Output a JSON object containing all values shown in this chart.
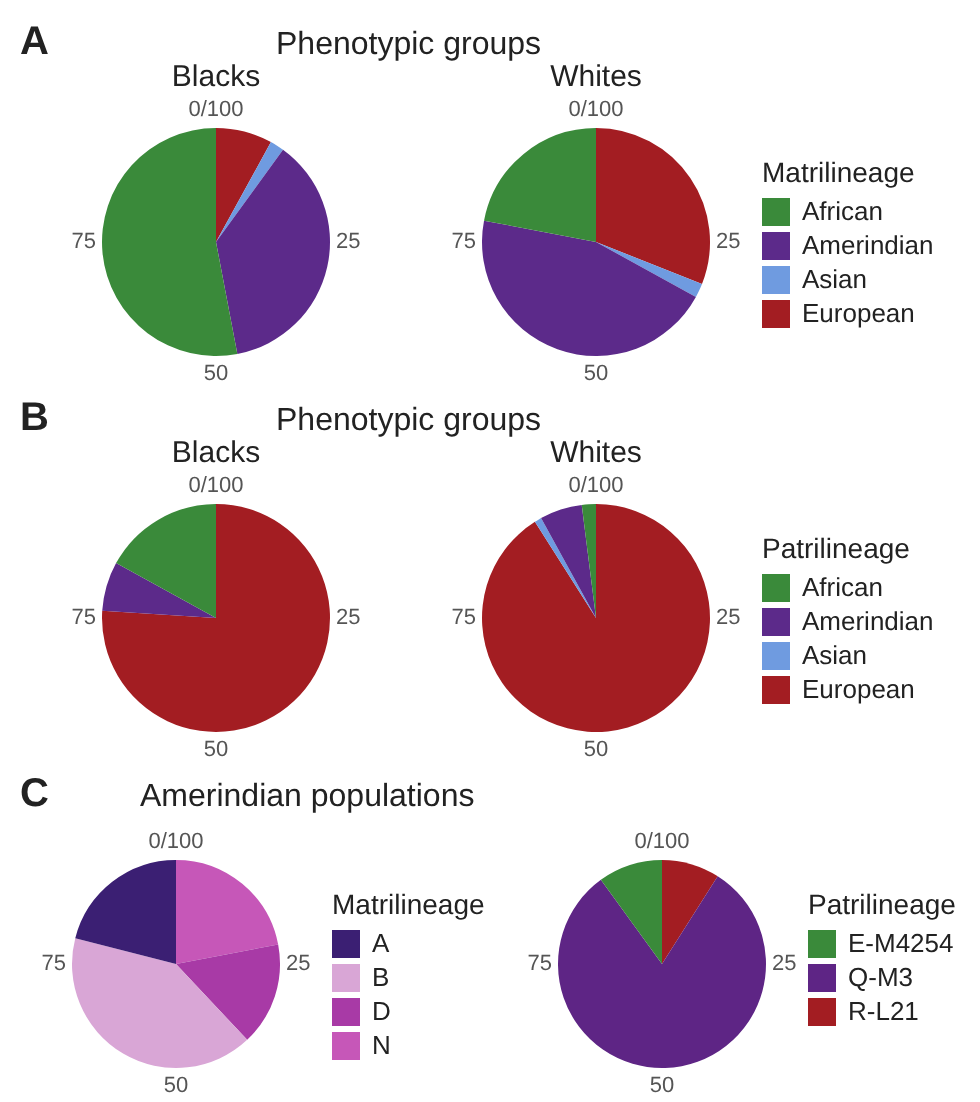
{
  "chart_data": [
    {
      "type": "pie",
      "title": "Phenotypic groups",
      "annotations": [
        "A",
        "0/100",
        "25",
        "50",
        "75"
      ],
      "categories": [
        "European",
        "Asian",
        "Amerindian",
        "African"
      ],
      "colors": [
        "#a31d22",
        "#6f9be0",
        "#5c2a8a",
        "#3a8a3a"
      ],
      "series": [
        {
          "name": "Blacks",
          "values": [
            8,
            2,
            37,
            53
          ]
        },
        {
          "name": "Whites",
          "values": [
            31,
            2,
            45,
            22
          ]
        }
      ],
      "legend": "right",
      "legend_title": "Matrilineage"
    },
    {
      "type": "pie",
      "title": "Phenotypic groups",
      "annotations": [
        "B",
        "0/100",
        "25",
        "50",
        "75"
      ],
      "categories": [
        "European",
        "Asian",
        "Amerindian",
        "African"
      ],
      "colors": [
        "#a31d22",
        "#6f9be0",
        "#5c2a8a",
        "#3a8a3a"
      ],
      "series": [
        {
          "name": "Blacks",
          "values": [
            76,
            0,
            7,
            17
          ]
        },
        {
          "name": "Whites",
          "values": [
            91,
            1,
            6,
            2
          ]
        }
      ],
      "legend": "right",
      "legend_title": "Patrilineage"
    },
    {
      "type": "pie",
      "title": "Amerindian populations",
      "annotations": [
        "C",
        "0/100",
        "25",
        "50",
        "75"
      ],
      "categories": [
        "N",
        "D",
        "B",
        "A"
      ],
      "values": [
        22,
        16,
        41,
        21
      ],
      "colors": [
        "#c657b8",
        "#a83aa6",
        "#d9a6d6",
        "#3b1f73"
      ],
      "legend": "right",
      "legend_title": "Matrilineage"
    },
    {
      "type": "pie",
      "annotations": [
        "0/100",
        "25",
        "50",
        "75"
      ],
      "categories": [
        "R-L21",
        "Q-M3",
        "E-M4254"
      ],
      "values": [
        9,
        81,
        10
      ],
      "colors": [
        "#a31d22",
        "#5e2585",
        "#3a8a3a"
      ],
      "legend": "right",
      "legend_title": "Patrilineage"
    }
  ]
}
